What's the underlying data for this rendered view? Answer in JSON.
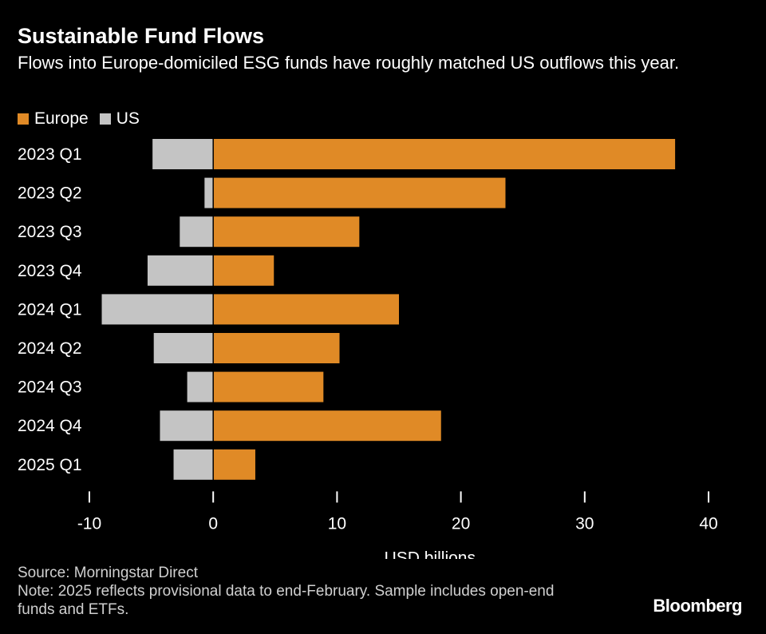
{
  "title": "Sustainable Fund Flows",
  "subtitle": "Flows into Europe-domiciled ESG funds have roughly matched US outflows this year.",
  "legend": [
    {
      "label": "Europe",
      "color": "#e08a26"
    },
    {
      "label": "US",
      "color": "#c4c4c4"
    }
  ],
  "footer": {
    "source": "Source: Morningstar Direct",
    "note": "Note: 2025 reflects provisional data to end-February. Sample includes open-end funds and ETFs."
  },
  "logo": "Bloomberg",
  "chart_data": {
    "type": "bar",
    "orientation": "horizontal",
    "stacked": "diverging",
    "title": "Sustainable Fund Flows",
    "xlabel": "USD billions",
    "ylabel": "",
    "xlim": [
      -10,
      40
    ],
    "xticks": [
      -10,
      0,
      10,
      20,
      30,
      40
    ],
    "categories": [
      "2023 Q1",
      "2023 Q2",
      "2023 Q3",
      "2023 Q4",
      "2024 Q1",
      "2024 Q2",
      "2024 Q3",
      "2024 Q4",
      "2025 Q1"
    ],
    "series": [
      {
        "name": "Europe",
        "color": "#e08a26",
        "values": [
          37.3,
          23.6,
          11.8,
          4.9,
          15.0,
          10.2,
          8.9,
          18.4,
          3.4
        ]
      },
      {
        "name": "US",
        "color": "#c4c4c4",
        "values": [
          -4.9,
          -0.7,
          -2.7,
          -5.3,
          -9.0,
          -4.8,
          -2.1,
          -4.3,
          -3.2
        ]
      }
    ]
  }
}
